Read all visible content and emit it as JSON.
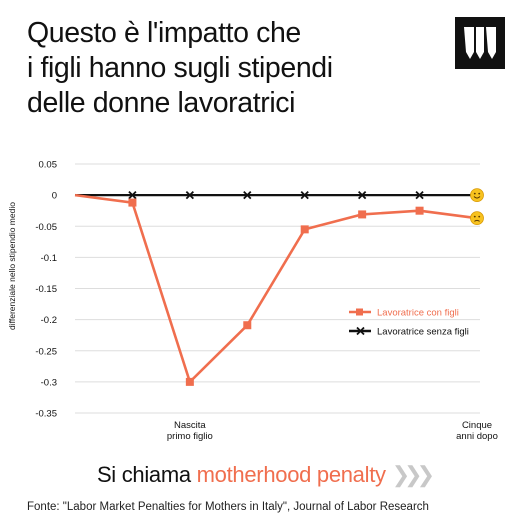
{
  "title_lines": [
    "Questo è l'impatto che",
    "i figli hanno sugli stipendi",
    "delle donne lavoratrici"
  ],
  "logo": {
    "icon": "w-brand-logo",
    "color": "#111111"
  },
  "chart_data": {
    "type": "line",
    "ylabel": "differenziale nello stipendio medio",
    "ylim": [
      -0.35,
      0.05
    ],
    "yticks": [
      0.05,
      0,
      -0.05,
      -0.1,
      -0.15,
      -0.2,
      -0.25,
      -0.3,
      -0.35
    ],
    "ytick_labels": [
      "0.05",
      "0",
      "-0.05",
      "-0.1",
      "-0.15",
      "-0.2",
      "-0.25",
      "-0.3",
      "-0.35"
    ],
    "x": [
      0,
      1,
      2,
      3,
      4,
      5,
      6,
      7
    ],
    "xlim": [
      0,
      7
    ],
    "x_annotations": [
      {
        "x": 2,
        "lines": [
          "Nascita",
          "primo figlio"
        ]
      },
      {
        "x": 7,
        "lines": [
          "Cinque",
          "anni dopo"
        ]
      }
    ],
    "grid": "horizontal",
    "legend_position": "right",
    "series": [
      {
        "name": "Lavoratrice con figli",
        "color": "#f06e4e",
        "marker": "square",
        "values": [
          0,
          -0.012,
          -0.3,
          -0.209,
          -0.055,
          -0.031,
          -0.025,
          -0.037
        ],
        "end_emoji": "😞"
      },
      {
        "name": "Lavoratrice senza figli",
        "color": "#111111",
        "marker": "x",
        "values": [
          0,
          0,
          0,
          0,
          0,
          0,
          0,
          0
        ],
        "end_emoji": "😊"
      }
    ]
  },
  "footer": {
    "prefix": "Si chiama ",
    "highlight": "motherhood penalty",
    "arrows": "❯❯❯"
  },
  "source": "Fonte: \"Labor Market Penalties for Mothers in Italy\", Journal of Labor Research"
}
